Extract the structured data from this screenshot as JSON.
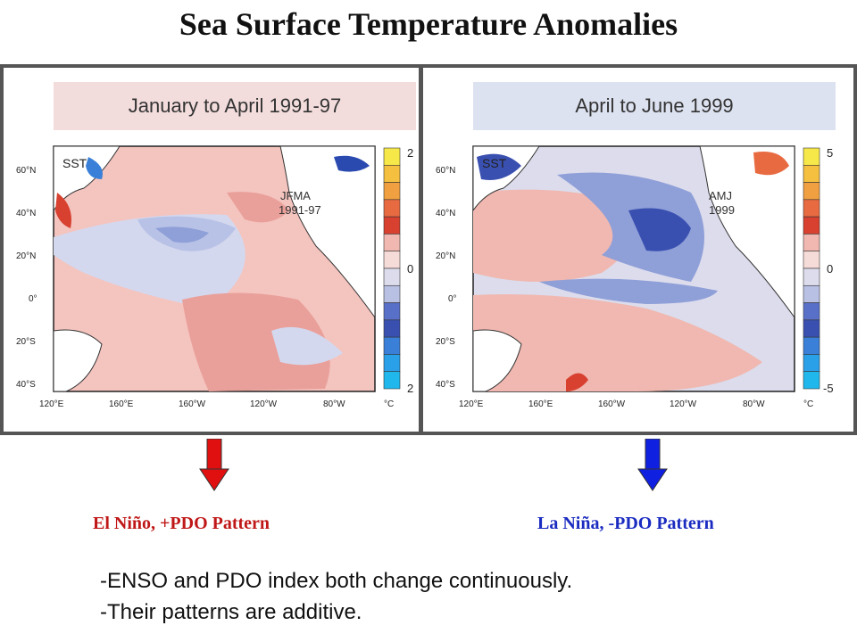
{
  "title": "Sea Surface Temperature Anomalies",
  "panels": [
    {
      "header": "January to April 1991-97",
      "sst_label": "SST",
      "inset": [
        "JFMA",
        "1991-97"
      ],
      "lat_ticks": [
        "60°N",
        "40°N",
        "20°N",
        "0°",
        "20°S",
        "40°S"
      ],
      "lon_ticks": [
        "120°E",
        "160°E",
        "160°W",
        "120°W",
        "80°W"
      ],
      "scale": {
        "top": "2",
        "mid": "0",
        "bottom": "2",
        "unit": "°C"
      },
      "header_color": "#f3dcdc"
    },
    {
      "header": "April to June 1999",
      "sst_label": "SST",
      "inset": [
        "AMJ",
        "1999"
      ],
      "lat_ticks": [
        "60°N",
        "40°N",
        "20°N",
        "0°",
        "20°S",
        "40°S"
      ],
      "lon_ticks": [
        "120°E",
        "160°E",
        "160°W",
        "120°W",
        "80°W"
      ],
      "scale": {
        "top": "5",
        "mid": "0",
        "bottom": "-5",
        "unit": "°C"
      },
      "header_color": "#dde2f0"
    }
  ],
  "arrows": [
    {
      "color": "#e01010",
      "direction": "down"
    },
    {
      "color": "#1020e0",
      "direction": "down"
    }
  ],
  "captions": [
    {
      "text": "El Niño, +PDO Pattern",
      "color": "#c01818"
    },
    {
      "text": "La Niña, -PDO Pattern",
      "color": "#1a2bc0"
    }
  ],
  "notes": [
    "-ENSO and PDO index both change continuously.",
    "-Their patterns are additive."
  ],
  "colorbar": [
    "#f7e84a",
    "#f5c040",
    "#f0a040",
    "#e86a40",
    "#d84030",
    "#f0b8b0",
    "#f6dcd8",
    "#dcdcec",
    "#b8c0e4",
    "#5870c8",
    "#3a50b0",
    "#3a80d8",
    "#2aa0e8",
    "#20b8ec"
  ]
}
